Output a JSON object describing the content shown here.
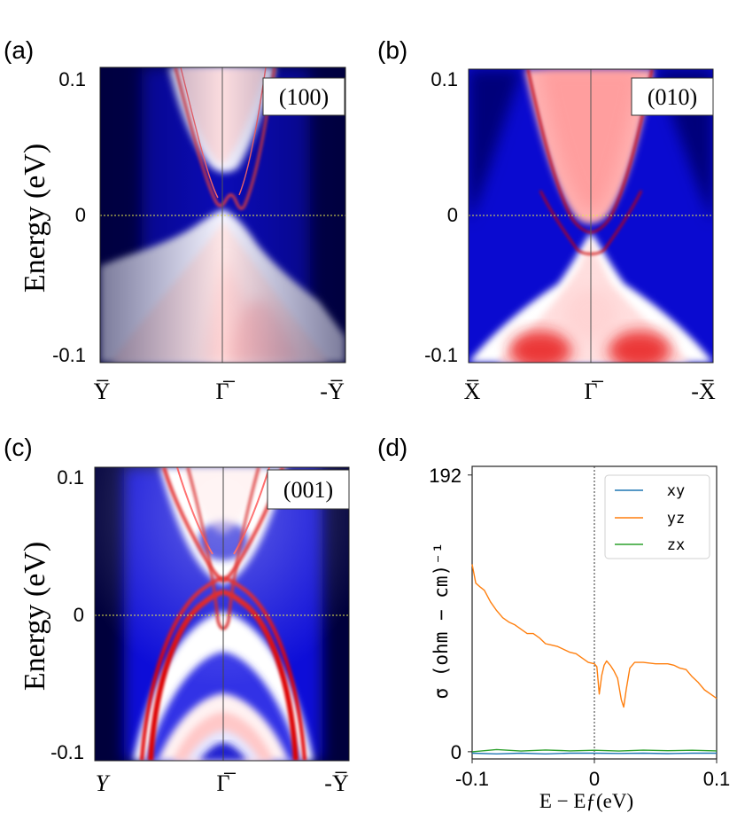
{
  "panels": [
    {
      "id": "a",
      "panel_label": "(a)",
      "surface_label": "(100)",
      "ylabel": "Energy  (eV)",
      "y_ticks": [
        "0.1",
        "0",
        "-0.1"
      ],
      "x_ticks": [
        "Y̅",
        "Γ̅",
        "-Y̅"
      ]
    },
    {
      "id": "b",
      "panel_label": "(b)",
      "surface_label": "(010)",
      "y_ticks": [
        "0.1",
        "0",
        "-0.1"
      ],
      "x_ticks": [
        "X̅",
        "Γ̅",
        "-X̅"
      ]
    },
    {
      "id": "c",
      "panel_label": "(c)",
      "surface_label": "(001)",
      "ylabel": "Energy  (eV)",
      "y_ticks": [
        "0.1",
        "0",
        "-0.1"
      ],
      "x_ticks": [
        "Y",
        "Γ̅",
        "-Y̅"
      ]
    },
    {
      "id": "d",
      "panel_label": "(d)"
    }
  ],
  "colors": {
    "bulk_low": "#00004d",
    "mid": "#2a2ae6",
    "high": "#e60000",
    "white": "#ffffff",
    "xy": "#1f77b4",
    "yz": "#ff7f0e",
    "zx": "#2ca02c",
    "fermi_line": "#e8e84a"
  },
  "chart_data": [
    {
      "panel": "a",
      "type": "heatmap",
      "title": "(100)",
      "xlabel": "",
      "ylabel": "Energy (eV)",
      "x_ticks": [
        "Y̅",
        "Γ̅",
        "-Y̅"
      ],
      "ylim": [
        -0.105,
        0.105
      ],
      "y_tick_values": [
        -0.1,
        0,
        0.1
      ]
    },
    {
      "panel": "b",
      "type": "heatmap",
      "title": "(010)",
      "xlabel": "",
      "ylabel": "",
      "x_ticks": [
        "X̅",
        "Γ̅",
        "-X̅"
      ],
      "ylim": [
        -0.105,
        0.105
      ],
      "y_tick_values": [
        -0.1,
        0,
        0.1
      ]
    },
    {
      "panel": "c",
      "type": "heatmap",
      "title": "(001)",
      "xlabel": "",
      "ylabel": "Energy (eV)",
      "x_ticks": [
        "Y",
        "Γ̅",
        "-Y̅"
      ],
      "ylim": [
        -0.105,
        0.105
      ],
      "y_tick_values": [
        -0.1,
        0,
        0.1
      ]
    },
    {
      "panel": "d",
      "type": "line",
      "title": "",
      "xlabel": "E − Eƒ(eV)",
      "ylabel": "σ (ohm − cm)⁻¹",
      "xlim": [
        -0.1,
        0.1
      ],
      "ylim": [
        -5,
        198
      ],
      "x_tick_labels": [
        "-0.1",
        "0",
        "0.1"
      ],
      "x_tick_values": [
        -0.1,
        0,
        0.1
      ],
      "y_tick_labels": [
        "192",
        "0"
      ],
      "y_tick_values": [
        192,
        0
      ],
      "legend": "top-right",
      "series": [
        {
          "name": "xy",
          "x": [
            -0.1,
            -0.08,
            -0.06,
            -0.04,
            -0.02,
            0,
            0.02,
            0.04,
            0.06,
            0.08,
            0.1
          ],
          "values": [
            -1,
            -1.5,
            -1,
            -1.5,
            -1,
            -1,
            -1.2,
            -1,
            -1.3,
            -1,
            -1
          ]
        },
        {
          "name": "yz",
          "x": [
            -0.1,
            -0.097,
            -0.093,
            -0.09,
            -0.085,
            -0.08,
            -0.075,
            -0.07,
            -0.065,
            -0.06,
            -0.055,
            -0.05,
            -0.045,
            -0.04,
            -0.035,
            -0.03,
            -0.025,
            -0.02,
            -0.015,
            -0.01,
            -0.005,
            0,
            0.002,
            0.004,
            0.006,
            0.008,
            0.01,
            0.013,
            0.016,
            0.019,
            0.022,
            0.024,
            0.026,
            0.029,
            0.033,
            0.04,
            0.05,
            0.06,
            0.065,
            0.07,
            0.075,
            0.08,
            0.085,
            0.09,
            0.095,
            0.1
          ],
          "values": [
            130,
            117,
            114,
            112,
            104,
            98,
            93,
            90,
            88,
            85,
            82,
            82,
            79,
            75,
            74,
            73,
            71,
            69,
            68,
            65,
            62,
            61,
            59,
            40,
            53,
            60,
            63,
            60,
            56,
            51,
            36,
            31,
            43,
            58,
            62,
            62,
            61,
            61,
            60,
            58,
            57,
            52,
            48,
            43,
            40,
            37
          ]
        },
        {
          "name": "zx",
          "x": [
            -0.1,
            -0.08,
            -0.06,
            -0.04,
            -0.02,
            0,
            0.02,
            0.04,
            0.06,
            0.08,
            0.1
          ],
          "values": [
            0,
            1.5,
            0.5,
            1.2,
            0.6,
            1,
            0.5,
            1.1,
            0.7,
            1,
            0.6
          ]
        }
      ]
    }
  ]
}
